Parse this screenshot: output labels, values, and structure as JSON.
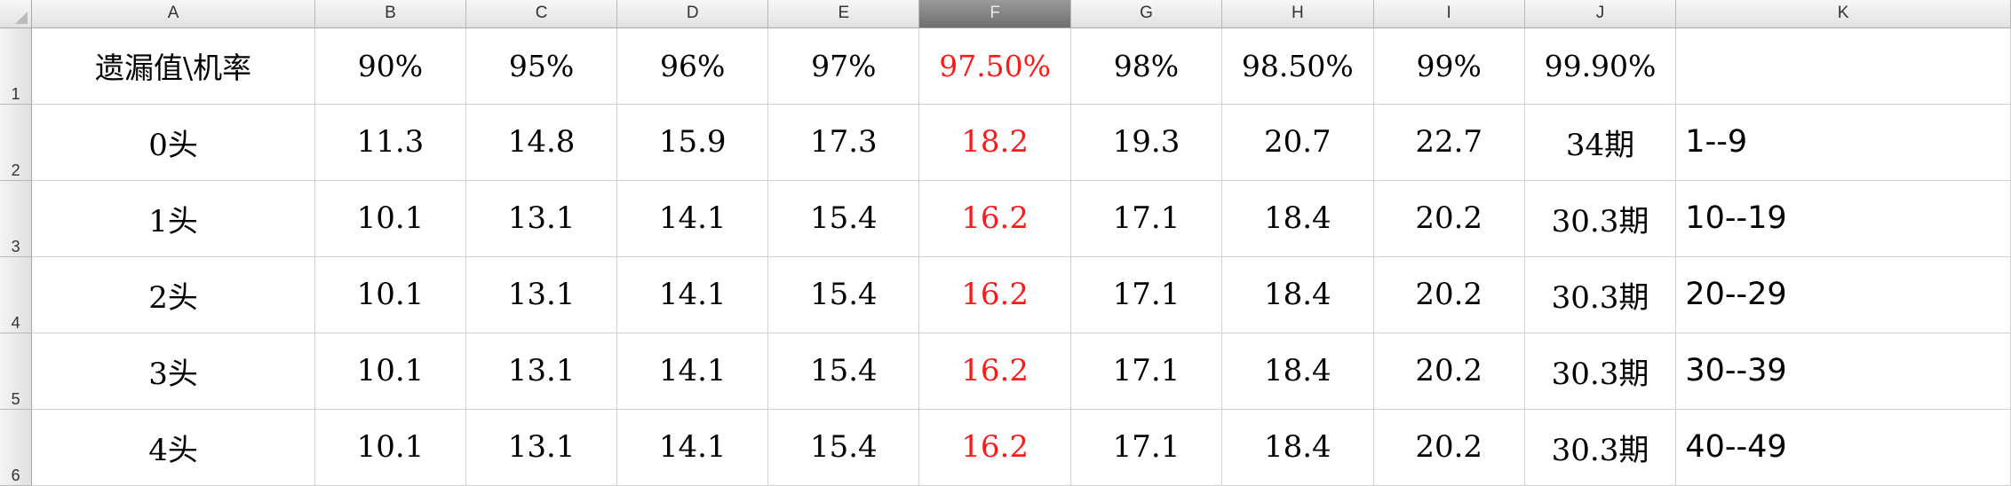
{
  "columns": [
    "A",
    "B",
    "C",
    "D",
    "E",
    "F",
    "G",
    "H",
    "I",
    "J",
    "K"
  ],
  "selected_column": "F",
  "rows": [
    {
      "num": "1",
      "cells": [
        "遗漏值\\机率",
        "90%",
        "95%",
        "96%",
        "97%",
        "97.50%",
        "98%",
        "98.50%",
        "99%",
        "99.90%",
        ""
      ]
    },
    {
      "num": "2",
      "cells": [
        "0头",
        "11.3",
        "14.8",
        "15.9",
        "17.3",
        "18.2",
        "19.3",
        "20.7",
        "22.7",
        "34期",
        "1--9"
      ]
    },
    {
      "num": "3",
      "cells": [
        "1头",
        "10.1",
        "13.1",
        "14.1",
        "15.4",
        "16.2",
        "17.1",
        "18.4",
        "20.2",
        "30.3期",
        "10--19"
      ]
    },
    {
      "num": "4",
      "cells": [
        "2头",
        "10.1",
        "13.1",
        "14.1",
        "15.4",
        "16.2",
        "17.1",
        "18.4",
        "20.2",
        "30.3期",
        "20--29"
      ]
    },
    {
      "num": "5",
      "cells": [
        "3头",
        "10.1",
        "13.1",
        "14.1",
        "15.4",
        "16.2",
        "17.1",
        "18.4",
        "20.2",
        "30.3期",
        "30--39"
      ]
    },
    {
      "num": "6",
      "cells": [
        "4头",
        "10.1",
        "13.1",
        "14.1",
        "15.4",
        "16.2",
        "17.1",
        "18.4",
        "20.2",
        "30.3期",
        "40--49"
      ]
    }
  ],
  "colors": {
    "highlight_text": "#ff1a1a",
    "grid_line": "#d0d0d0",
    "selected_header": "#6f6f6f"
  }
}
